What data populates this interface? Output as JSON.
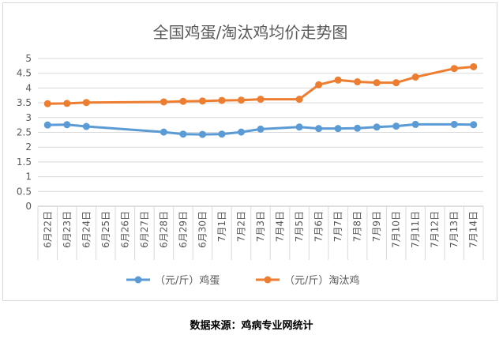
{
  "chart_data": {
    "type": "line",
    "title": "全国鸡蛋/淘汰鸡均价走势图",
    "categories": [
      "6月22日",
      "6月23日",
      "6月24日",
      "6月25日",
      "6月26日",
      "6月27日",
      "6月28日",
      "6月29日",
      "6月30日",
      "7月1日",
      "7月2日",
      "7月3日",
      "7月4日",
      "7月5日",
      "7月6日",
      "7月7日",
      "7月8日",
      "7月9日",
      "7月10日",
      "7月11日",
      "7月12日",
      "7月13日",
      "7月14日"
    ],
    "ylim": [
      0,
      5
    ],
    "yticks": [
      "0",
      "0.5",
      "1",
      "1.5",
      "2",
      "2.5",
      "3",
      "3.5",
      "4",
      "4.5",
      "5"
    ],
    "grid": true,
    "legend_position": "bottom",
    "series": [
      {
        "name": "（元/斤）鸡蛋",
        "color": "#5b9bd5",
        "values": [
          2.75,
          2.76,
          2.7,
          null,
          null,
          null,
          2.51,
          2.44,
          2.43,
          2.44,
          2.51,
          2.61,
          null,
          2.68,
          2.63,
          2.63,
          2.64,
          2.68,
          2.71,
          2.77,
          null,
          2.77,
          2.76
        ]
      },
      {
        "name": "（元/斤）淘汰鸡",
        "color": "#ed7d31",
        "values": [
          3.47,
          3.48,
          3.51,
          null,
          null,
          null,
          3.53,
          3.55,
          3.56,
          3.58,
          3.59,
          3.62,
          null,
          3.62,
          4.11,
          4.27,
          4.21,
          4.18,
          4.18,
          4.37,
          null,
          4.66,
          4.72
        ]
      }
    ]
  },
  "source_note": "数据来源：鸡病专业网统计"
}
